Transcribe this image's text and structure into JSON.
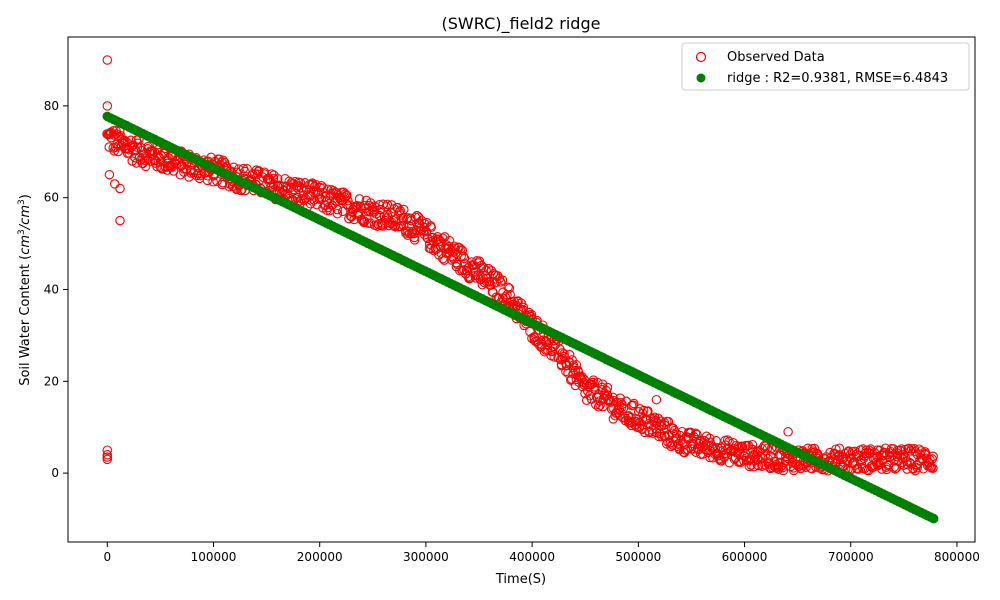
{
  "chart_data": {
    "type": "scatter",
    "title": "(SWRC)_field2 ridge",
    "xlabel": "Time(S)",
    "ylabel_main": "Soil Water Content (",
    "ylabel_unit1": "cm",
    "ylabel_exp1": "3",
    "ylabel_sep": "/",
    "ylabel_unit2": "cm",
    "ylabel_exp2": "3",
    "ylabel_close": ")",
    "xlim": [
      -37000,
      817000
    ],
    "ylim": [
      -15,
      95
    ],
    "xticks": [
      0,
      100000,
      200000,
      300000,
      400000,
      500000,
      600000,
      700000,
      800000
    ],
    "xtick_labels": [
      "0",
      "100000",
      "200000",
      "300000",
      "400000",
      "500000",
      "600000",
      "700000",
      "800000"
    ],
    "yticks": [
      0,
      20,
      40,
      60,
      80
    ],
    "ytick_labels": [
      "0",
      "20",
      "40",
      "60",
      "80"
    ],
    "legend_position": "top-right",
    "series": [
      {
        "name": "Observed Data",
        "marker": "hollow-circle",
        "color": "#ff0000",
        "trend": [
          [
            0,
            73
          ],
          [
            30000,
            70
          ],
          [
            60000,
            68
          ],
          [
            100000,
            66
          ],
          [
            130000,
            64
          ],
          [
            200000,
            60
          ],
          [
            215000,
            59
          ],
          [
            280000,
            55
          ],
          [
            300000,
            52
          ],
          [
            330000,
            47
          ],
          [
            370000,
            40
          ],
          [
            400000,
            32
          ],
          [
            430000,
            25
          ],
          [
            450000,
            18
          ],
          [
            465000,
            17
          ],
          [
            480000,
            14
          ],
          [
            510000,
            11
          ],
          [
            540000,
            7
          ],
          [
            560000,
            6
          ],
          [
            600000,
            4
          ],
          [
            640000,
            3
          ],
          [
            700000,
            3
          ],
          [
            778000,
            3
          ]
        ],
        "outliers": [
          [
            0,
            90
          ],
          [
            0,
            80
          ],
          [
            0,
            5
          ],
          [
            0,
            4
          ],
          [
            0,
            3.5
          ],
          [
            0,
            3
          ],
          [
            2000,
            65
          ],
          [
            7000,
            63
          ],
          [
            12000,
            62
          ],
          [
            12000,
            55
          ],
          [
            641000,
            9
          ],
          [
            517000,
            16
          ]
        ]
      },
      {
        "name": "ridge : R2=0.9381, RMSE=6.4843",
        "marker": "filled-circle",
        "color": "#008000",
        "line_start": [
          0,
          77.7
        ],
        "line_end": [
          778000,
          -9.9
        ]
      }
    ]
  }
}
